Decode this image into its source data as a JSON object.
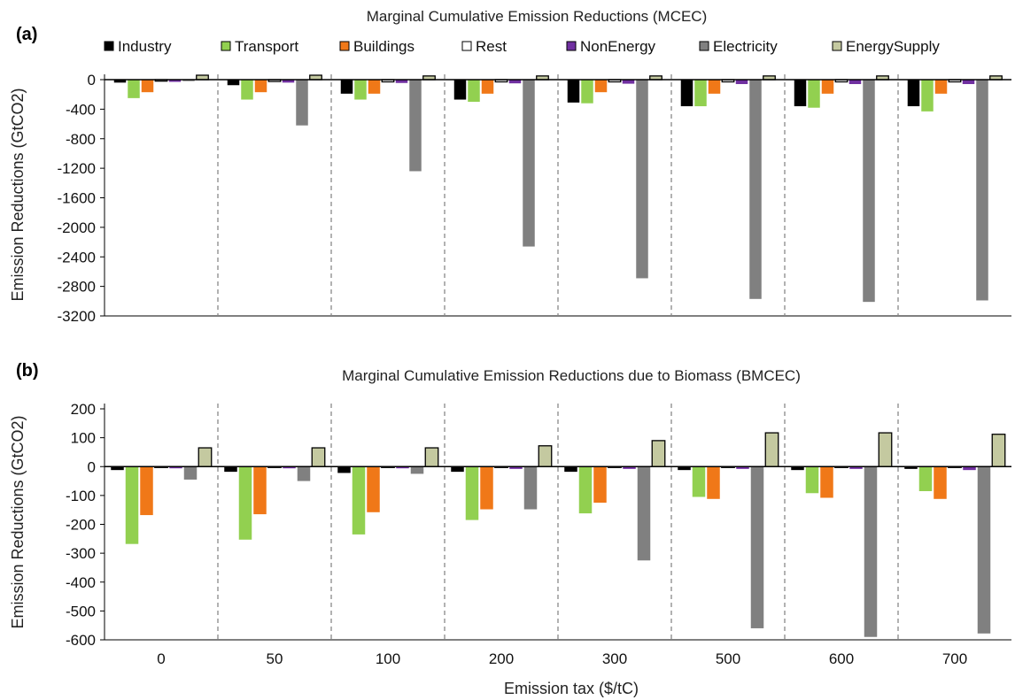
{
  "figure": {
    "xlabel": "Emission tax ($/tC)",
    "legend": [
      {
        "name": "Industry",
        "color": "#000000"
      },
      {
        "name": "Transport",
        "color": "#92d050"
      },
      {
        "name": "Buildings",
        "color": "#f07818"
      },
      {
        "name": "Rest",
        "color": "#ffffff"
      },
      {
        "name": "NonEnergy",
        "color": "#7030a0"
      },
      {
        "name": "Electricity",
        "color": "#808080"
      },
      {
        "name": "EnergySupply",
        "color": "#c4c9a0"
      }
    ]
  },
  "chart_data": [
    {
      "panel": "(a)",
      "type": "bar",
      "title": "Marginal Cumulative Emission Reductions (MCEC)",
      "xlabel": "",
      "ylabel": "Emission Reductions (GtCO2)",
      "ylim": [
        -3200,
        0
      ],
      "yticks": [
        0,
        -400,
        -800,
        -1200,
        -1600,
        -2000,
        -2400,
        -2800,
        -3200
      ],
      "categories": [
        "0",
        "50",
        "100",
        "200",
        "300",
        "500",
        "600",
        "700"
      ],
      "legend_position": "top",
      "series": [
        {
          "name": "Industry",
          "values": [
            -40,
            -75,
            -190,
            -270,
            -310,
            -360,
            -360,
            -360
          ]
        },
        {
          "name": "Transport",
          "values": [
            -250,
            -270,
            -270,
            -300,
            -320,
            -360,
            -380,
            -430
          ]
        },
        {
          "name": "Buildings",
          "values": [
            -170,
            -170,
            -190,
            -190,
            -170,
            -190,
            -190,
            -190
          ]
        },
        {
          "name": "Rest",
          "values": [
            -20,
            -25,
            -30,
            -30,
            -30,
            -30,
            -30,
            -30
          ]
        },
        {
          "name": "NonEnergy",
          "values": [
            -30,
            -40,
            -45,
            -50,
            -55,
            -60,
            -60,
            -60
          ]
        },
        {
          "name": "Electricity",
          "values": [
            -20,
            -620,
            -1240,
            -2260,
            -2690,
            -2970,
            -3010,
            -2990
          ]
        },
        {
          "name": "EnergySupply",
          "values": [
            60,
            60,
            50,
            50,
            50,
            50,
            50,
            50
          ]
        }
      ]
    },
    {
      "panel": "(b)",
      "type": "bar",
      "title": "Marginal Cumulative Emission Reductions due to Biomass  (BMCEC)",
      "xlabel": "Emission tax ($/tC)",
      "ylabel": "Emission Reductions (GtCO2)",
      "ylim": [
        -600,
        200
      ],
      "yticks": [
        200,
        100,
        0,
        -100,
        -200,
        -300,
        -400,
        -500,
        -600
      ],
      "categories": [
        "0",
        "50",
        "100",
        "200",
        "300",
        "500",
        "600",
        "700"
      ],
      "series": [
        {
          "name": "Industry",
          "values": [
            -12,
            -18,
            -22,
            -18,
            -18,
            -12,
            -12,
            -8
          ]
        },
        {
          "name": "Transport",
          "values": [
            -268,
            -253,
            -235,
            -185,
            -162,
            -105,
            -92,
            -85
          ]
        },
        {
          "name": "Buildings",
          "values": [
            -168,
            -165,
            -158,
            -148,
            -125,
            -112,
            -108,
            -112
          ]
        },
        {
          "name": "Rest",
          "values": [
            -3,
            -3,
            -3,
            -3,
            -3,
            -3,
            -3,
            -3
          ]
        },
        {
          "name": "NonEnergy",
          "values": [
            -6,
            -6,
            -6,
            -8,
            -8,
            -8,
            -8,
            -12
          ]
        },
        {
          "name": "Electricity",
          "values": [
            -45,
            -50,
            -25,
            -148,
            -325,
            -560,
            -590,
            -578
          ]
        },
        {
          "name": "EnergySupply",
          "values": [
            65,
            65,
            65,
            72,
            90,
            117,
            117,
            112
          ]
        }
      ]
    }
  ]
}
